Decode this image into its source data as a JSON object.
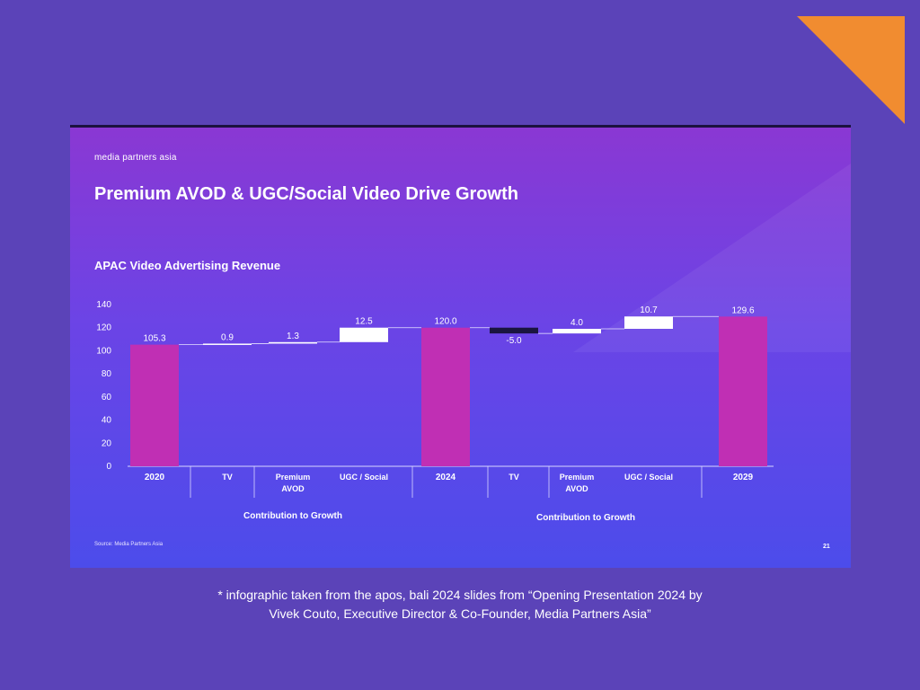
{
  "slide": {
    "brand": "media partners asia",
    "title": "Premium AVOD & UGC/Social Video Drive Growth",
    "source": "Source: Media Partners Asia",
    "page_number": "21"
  },
  "caption": {
    "line1": "*  infographic taken from the apos, bali 2024 slides from “Opening Presentation 2024 by",
    "line2": "Vivek Couto, Executive Director & Co-Founder, Media Partners Asia”"
  },
  "colors": {
    "background": "#5b43b8",
    "accent_orange": "#f18c30",
    "total_bar": "#c02fb4",
    "increase_bar": "#ffffff",
    "decrease_bar": "#1a1540"
  },
  "chart_data": {
    "type": "bar",
    "subtype": "waterfall",
    "title": "APAC Video Advertising Revenue",
    "categories": [
      "2020",
      "TV",
      "Premium AVOD",
      "UGC / Social",
      "2024",
      "TV",
      "Premium AVOD",
      "UGC / Social",
      "2029"
    ],
    "category_lines": [
      [
        "2020"
      ],
      [
        "TV"
      ],
      [
        "Premium",
        "AVOD"
      ],
      [
        "UGC / Social"
      ],
      [
        "2024"
      ],
      [
        "TV"
      ],
      [
        "Premium",
        "AVOD"
      ],
      [
        "UGC / Social"
      ],
      [
        "2029"
      ]
    ],
    "bar_kinds": [
      "total",
      "delta",
      "delta",
      "delta",
      "total",
      "delta",
      "delta",
      "delta",
      "total"
    ],
    "values": [
      105.3,
      0.9,
      1.3,
      12.5,
      120.0,
      -5.0,
      4.0,
      10.7,
      129.6
    ],
    "data_labels": [
      "105.3",
      "0.9",
      "1.3",
      "12.5",
      "120.0",
      "-5.0",
      "4.0",
      "10.7",
      "129.6"
    ],
    "group_labels": [
      "Contribution to Growth",
      "Contribution to Growth"
    ],
    "yticks": [
      "0",
      "20",
      "40",
      "60",
      "80",
      "100",
      "120",
      "140"
    ],
    "ylim": [
      0,
      140
    ],
    "grid": false
  }
}
